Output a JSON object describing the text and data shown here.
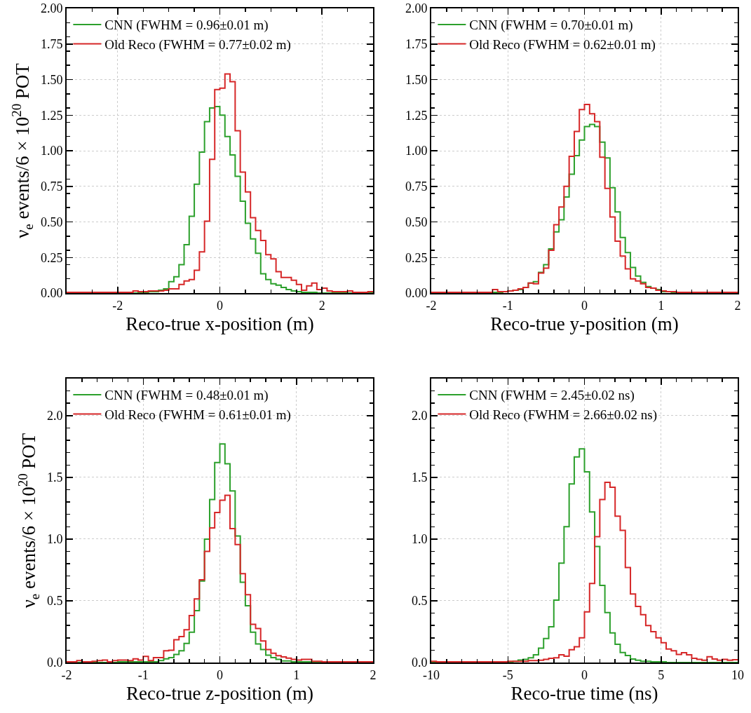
{
  "chart_data": [
    {
      "type": "histogram",
      "xlabel": "Reco-true x-position (m)",
      "ylabel": "ν$_{e}$ events/6 × 10$^{20}$ POT",
      "grid": true,
      "legend": "top left",
      "xlim": [
        -3,
        3
      ],
      "xticks": [
        -2,
        0,
        2
      ],
      "ylim": [
        0,
        2
      ],
      "yticks": [
        {
          "value": 0,
          "label": "0.00"
        },
        {
          "value": 0.25,
          "label": "0.25"
        },
        {
          "value": 0.5,
          "label": "0.50"
        },
        {
          "value": 0.75,
          "label": "0.75"
        },
        {
          "value": 1,
          "label": "1.00"
        },
        {
          "value": 1.25,
          "label": "1.25"
        },
        {
          "value": 1.5,
          "label": "1.50"
        },
        {
          "value": 1.75,
          "label": "1.75"
        },
        {
          "value": 2,
          "label": "2.00"
        }
      ],
      "bins": [
        -3,
        -2.9,
        -2.8,
        -2.7,
        -2.6,
        -2.5,
        -2.4,
        -2.3,
        -2.2,
        -2.1,
        -2,
        -1.9,
        -1.8,
        -1.7,
        -1.6,
        -1.5,
        -1.4,
        -1.3,
        -1.2,
        -1.1,
        -1,
        -0.9,
        -0.8,
        -0.7,
        -0.6,
        -0.5,
        -0.4,
        -0.3,
        -0.2,
        -0.1,
        0,
        0.1,
        0.2,
        0.3,
        0.4,
        0.5,
        0.6,
        0.7,
        0.8,
        0.9,
        1,
        1.1,
        1.2,
        1.3,
        1.4,
        1.5,
        1.6,
        1.7,
        1.8,
        1.9,
        2,
        2.1,
        2.2,
        2.3,
        2.4,
        2.5,
        2.6,
        2.7,
        2.8,
        2.9,
        3
      ],
      "series": [
        {
          "name": "CNN (FWHM = 0.96±0.01 m)",
          "color": "#2ca02c",
          "values": [
            0,
            0,
            0,
            0,
            0,
            0,
            0,
            0,
            0,
            0,
            0,
            0,
            0,
            0,
            0.005,
            0.005,
            0.01,
            0.01,
            0.02,
            0.03,
            0.08,
            0.115,
            0.2,
            0.34,
            0.54,
            0.765,
            0.99,
            1.205,
            1.3,
            1.31,
            1.25,
            1.1,
            0.97,
            0.82,
            0.645,
            0.49,
            0.38,
            0.28,
            0.135,
            0.095,
            0.065,
            0.055,
            0.04,
            0.025,
            0.015,
            0.01,
            0.005,
            0.005,
            0.005,
            0,
            0,
            0,
            0,
            0,
            0,
            0,
            0,
            0,
            0,
            0
          ]
        },
        {
          "name": "Old Reco (FWHM = 0.77±0.02 m)",
          "color": "#d62728",
          "values": [
            0.005,
            0.005,
            0.005,
            0.005,
            0.005,
            0.005,
            0.005,
            0.005,
            0.005,
            0.005,
            0.005,
            0.005,
            0.005,
            0.015,
            0.01,
            0.01,
            0.015,
            0.015,
            0.015,
            0.02,
            0.03,
            0.03,
            0.06,
            0.085,
            0.095,
            0.16,
            0.29,
            0.505,
            0.94,
            1.43,
            1.44,
            1.54,
            1.485,
            1.14,
            0.85,
            0.71,
            0.53,
            0.44,
            0.37,
            0.27,
            0.24,
            0.15,
            0.11,
            0.11,
            0.09,
            0.06,
            0.02,
            0.05,
            0.07,
            0.025,
            0.035,
            0.015,
            0.01,
            0.01,
            0.01,
            0.015,
            0.005,
            0.005,
            0.005,
            0.01
          ]
        }
      ]
    },
    {
      "type": "histogram",
      "xlabel": "Reco-true y-position (m)",
      "grid": true,
      "legend": "top left",
      "xlim": [
        -2,
        2
      ],
      "xticks": [
        -2,
        -1,
        0,
        1,
        2
      ],
      "ylim": [
        0,
        2
      ],
      "yticks": [
        {
          "value": 0,
          "label": "0.00"
        },
        {
          "value": 0.25,
          "label": "0.25"
        },
        {
          "value": 0.5,
          "label": "0.50"
        },
        {
          "value": 0.75,
          "label": "0.75"
        },
        {
          "value": 1,
          "label": "1.00"
        },
        {
          "value": 1.25,
          "label": "1.25"
        },
        {
          "value": 1.5,
          "label": "1.50"
        },
        {
          "value": 1.75,
          "label": "1.75"
        },
        {
          "value": 2,
          "label": "2.00"
        }
      ],
      "bins": [
        -2,
        -1.933,
        -1.867,
        -1.8,
        -1.733,
        -1.667,
        -1.6,
        -1.533,
        -1.467,
        -1.4,
        -1.333,
        -1.267,
        -1.2,
        -1.133,
        -1.067,
        -1,
        -0.933,
        -0.867,
        -0.8,
        -0.733,
        -0.667,
        -0.6,
        -0.533,
        -0.467,
        -0.4,
        -0.333,
        -0.267,
        -0.2,
        -0.133,
        -0.067,
        0,
        0.067,
        0.133,
        0.2,
        0.267,
        0.333,
        0.4,
        0.467,
        0.533,
        0.6,
        0.667,
        0.733,
        0.8,
        0.867,
        0.933,
        1,
        1.067,
        1.133,
        1.2,
        1.267,
        1.333,
        1.4,
        1.467,
        1.533,
        1.6,
        1.667,
        1.733,
        1.8,
        1.867,
        1.933,
        2
      ],
      "series": [
        {
          "name": "CNN (FWHM = 0.70±0.01 m)",
          "color": "#2ca02c",
          "values": [
            0,
            0,
            0,
            0,
            0,
            0,
            0,
            0,
            0,
            0,
            0.005,
            0.005,
            0.005,
            0.005,
            0.01,
            0.015,
            0.02,
            0.025,
            0.04,
            0.07,
            0.08,
            0.145,
            0.2,
            0.31,
            0.43,
            0.515,
            0.675,
            0.835,
            0.965,
            1.075,
            1.17,
            1.185,
            1.17,
            1.06,
            0.95,
            0.74,
            0.57,
            0.39,
            0.285,
            0.18,
            0.12,
            0.075,
            0.045,
            0.035,
            0.025,
            0.01,
            0.01,
            0.005,
            0.005,
            0.005,
            0.005,
            0.005,
            0.005,
            0,
            0,
            0,
            0,
            0,
            0,
            0
          ]
        },
        {
          "name": "Old Reco (FWHM = 0.62±0.01 m)",
          "color": "#d62728",
          "values": [
            0.005,
            0.005,
            0.005,
            0.005,
            0.005,
            0.005,
            0.005,
            0.005,
            0.005,
            0.005,
            0.005,
            0.005,
            0.025,
            0.01,
            0.01,
            0.015,
            0.02,
            0.03,
            0.04,
            0.07,
            0.065,
            0.14,
            0.175,
            0.3,
            0.48,
            0.605,
            0.75,
            0.96,
            1.135,
            1.29,
            1.325,
            1.26,
            1.205,
            0.955,
            0.735,
            0.535,
            0.365,
            0.26,
            0.17,
            0.1,
            0.085,
            0.065,
            0.04,
            0.035,
            0.02,
            0.015,
            0.01,
            0.01,
            0.005,
            0.005,
            0.005,
            0.005,
            0.005,
            0.005,
            0.005,
            0.005,
            0.005,
            0.005,
            0.005,
            0.005
          ]
        }
      ]
    },
    {
      "type": "histogram",
      "xlabel": "Reco-true z-position (m)",
      "ylabel": "ν$_{e}$ events/6 × 10$^{20}$ POT",
      "grid": true,
      "legend": "top left",
      "xlim": [
        -2,
        2
      ],
      "xticks": [
        -2,
        -1,
        0,
        1,
        2
      ],
      "ylim": [
        0,
        2.3
      ],
      "yticks": [
        {
          "value": 0,
          "label": "0.0"
        },
        {
          "value": 0.5,
          "label": "0.5"
        },
        {
          "value": 1,
          "label": "1.0"
        },
        {
          "value": 1.5,
          "label": "1.5"
        },
        {
          "value": 2,
          "label": "2.0"
        }
      ],
      "bins": [
        -2,
        -1.933,
        -1.867,
        -1.8,
        -1.733,
        -1.667,
        -1.6,
        -1.533,
        -1.467,
        -1.4,
        -1.333,
        -1.267,
        -1.2,
        -1.133,
        -1.067,
        -1,
        -0.933,
        -0.867,
        -0.8,
        -0.733,
        -0.667,
        -0.6,
        -0.533,
        -0.467,
        -0.4,
        -0.333,
        -0.267,
        -0.2,
        -0.133,
        -0.067,
        0,
        0.067,
        0.133,
        0.2,
        0.267,
        0.333,
        0.4,
        0.467,
        0.533,
        0.6,
        0.667,
        0.733,
        0.8,
        0.867,
        0.933,
        1,
        1.067,
        1.133,
        1.2,
        1.267,
        1.333,
        1.4,
        1.467,
        1.533,
        1.6,
        1.667,
        1.733,
        1.8,
        1.867,
        1.933,
        2
      ],
      "series": [
        {
          "name": "CNN (FWHM = 0.48±0.01 m)",
          "color": "#2ca02c",
          "values": [
            0,
            0,
            0,
            0,
            0,
            0,
            0,
            0,
            0,
            0,
            0.005,
            0.005,
            0.005,
            0.005,
            0.005,
            0.005,
            0.005,
            0.005,
            0.015,
            0.03,
            0.04,
            0.065,
            0.095,
            0.155,
            0.245,
            0.42,
            0.66,
            1.0,
            1.32,
            1.62,
            1.77,
            1.61,
            1.39,
            1.025,
            0.65,
            0.46,
            0.245,
            0.15,
            0.105,
            0.06,
            0.04,
            0.025,
            0.013,
            0.013,
            0.005,
            0.005,
            0.005,
            0.005,
            0.005,
            0.005,
            0.005,
            0,
            0,
            0,
            0,
            0,
            0,
            0,
            0,
            0
          ]
        },
        {
          "name": "Old Reco (FWHM = 0.61±0.01 m)",
          "color": "#d62728",
          "values": [
            0.005,
            0.005,
            0.015,
            0.005,
            0.005,
            0.01,
            0.015,
            0.02,
            0.005,
            0.015,
            0.02,
            0.02,
            0.015,
            0.03,
            0.02,
            0.05,
            0.015,
            0.04,
            0.04,
            0.095,
            0.1,
            0.185,
            0.21,
            0.265,
            0.38,
            0.515,
            0.67,
            0.9,
            1.09,
            1.215,
            1.315,
            1.355,
            1.085,
            0.955,
            0.72,
            0.55,
            0.31,
            0.275,
            0.175,
            0.105,
            0.075,
            0.055,
            0.045,
            0.035,
            0.025,
            0.02,
            0.025,
            0.025,
            0.01,
            0.01,
            0.005,
            0.005,
            0.005,
            0.005,
            0.005,
            0.005,
            0.005,
            0.005,
            0.005,
            0.005
          ]
        }
      ]
    },
    {
      "type": "histogram",
      "xlabel": "Reco-true time (ns)",
      "grid": true,
      "legend": "top left",
      "xlim": [
        -10,
        10
      ],
      "xticks": [
        -10,
        -5,
        0,
        5,
        10
      ],
      "ylim": [
        0,
        2.3
      ],
      "yticks": [
        {
          "value": 0,
          "label": "0.0"
        },
        {
          "value": 0.5,
          "label": "0.5"
        },
        {
          "value": 1,
          "label": "1.0"
        },
        {
          "value": 1.5,
          "label": "1.5"
        },
        {
          "value": 2,
          "label": "2.0"
        }
      ],
      "bins": [
        -10,
        -9.667,
        -9.333,
        -9,
        -8.667,
        -8.333,
        -8,
        -7.667,
        -7.333,
        -7,
        -6.667,
        -6.333,
        -6,
        -5.667,
        -5.333,
        -5,
        -4.667,
        -4.333,
        -4,
        -3.667,
        -3.333,
        -3,
        -2.667,
        -2.333,
        -2,
        -1.667,
        -1.333,
        -1,
        -0.667,
        -0.333,
        0,
        0.333,
        0.667,
        1,
        1.333,
        1.667,
        2,
        2.333,
        2.667,
        3,
        3.333,
        3.667,
        4,
        4.333,
        4.667,
        5,
        5.333,
        5.667,
        6,
        6.333,
        6.667,
        7,
        7.333,
        7.667,
        8,
        8.333,
        8.667,
        9,
        9.333,
        9.667,
        10
      ],
      "series": [
        {
          "name": "CNN (FWHM = 2.45±0.02 ns)",
          "color": "#2ca02c",
          "values": [
            0,
            0,
            0,
            0,
            0,
            0,
            0,
            0,
            0,
            0,
            0,
            0,
            0,
            0,
            0,
            0.005,
            0.01,
            0.02,
            0.025,
            0.038,
            0.062,
            0.117,
            0.195,
            0.29,
            0.505,
            0.805,
            1.1,
            1.447,
            1.665,
            1.73,
            1.545,
            1.22,
            0.94,
            0.625,
            0.405,
            0.24,
            0.147,
            0.081,
            0.057,
            0.028,
            0.019,
            0.01,
            0.01,
            0.005,
            0.005,
            0.005,
            0,
            0,
            0,
            0,
            0,
            0,
            0,
            0,
            0,
            0,
            0,
            0,
            0,
            0
          ]
        },
        {
          "name": "Old Reco (FWHM = 2.66±0.02 ns)",
          "color": "#d62728",
          "values": [
            0.01,
            0.005,
            0.005,
            0.005,
            0.005,
            0.005,
            0.005,
            0.005,
            0.005,
            0.005,
            0.005,
            0.005,
            0.005,
            0.005,
            0.005,
            0.01,
            0.01,
            0.01,
            0.01,
            0.015,
            0.015,
            0.019,
            0.025,
            0.034,
            0.038,
            0.062,
            0.051,
            0.104,
            0.128,
            0.2,
            0.41,
            0.64,
            1.02,
            1.32,
            1.46,
            1.42,
            1.185,
            1.07,
            0.77,
            0.555,
            0.455,
            0.387,
            0.3,
            0.25,
            0.2,
            0.16,
            0.11,
            0.095,
            0.066,
            0.08,
            0.062,
            0.034,
            0.025,
            0.019,
            0.047,
            0.028,
            0.019,
            0.025,
            0.019,
            0.023
          ]
        }
      ]
    }
  ]
}
